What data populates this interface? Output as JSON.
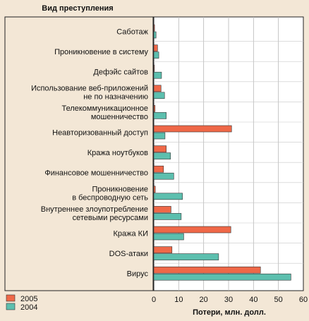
{
  "chart_data": {
    "type": "bar",
    "orientation": "horizontal",
    "ylabel": "Вид преступления",
    "xlabel": "Потери, млн. долл.",
    "xlim": [
      0,
      60
    ],
    "x_ticks": [
      0,
      10,
      20,
      30,
      40,
      50,
      60
    ],
    "grid": true,
    "legend_position": "bottom-left",
    "categories": [
      [
        "Саботаж"
      ],
      [
        "Проникновение в систему"
      ],
      [
        "Дефэйс сайтов"
      ],
      [
        "Использование веб-приложений",
        "не по назначению"
      ],
      [
        "Телекоммуникационное",
        "мошенничество"
      ],
      [
        "Неавторизованный доступ"
      ],
      [
        "Кража ноутбуков"
      ],
      [
        "Финансовое мошенничество"
      ],
      [
        "Проникновение",
        "в беспроводную сеть"
      ],
      [
        "Внутреннее злоупотребление",
        "сетевыми ресурсами"
      ],
      [
        "Кража КИ"
      ],
      [
        "DOS-атаки"
      ],
      [
        "Вирус"
      ]
    ],
    "series": [
      {
        "name": "2005",
        "color": "#ef6848",
        "values": [
          0.3,
          1.5,
          0.2,
          2.9,
          0.5,
          31.2,
          5.0,
          3.9,
          0.6,
          6.9,
          30.9,
          7.3,
          42.8
        ]
      },
      {
        "name": "2004",
        "color": "#5cbfae",
        "values": [
          0.9,
          2.0,
          3.1,
          4.3,
          5.0,
          4.5,
          6.7,
          8.0,
          11.5,
          11.0,
          12.0,
          26.0,
          55.0
        ]
      }
    ]
  }
}
